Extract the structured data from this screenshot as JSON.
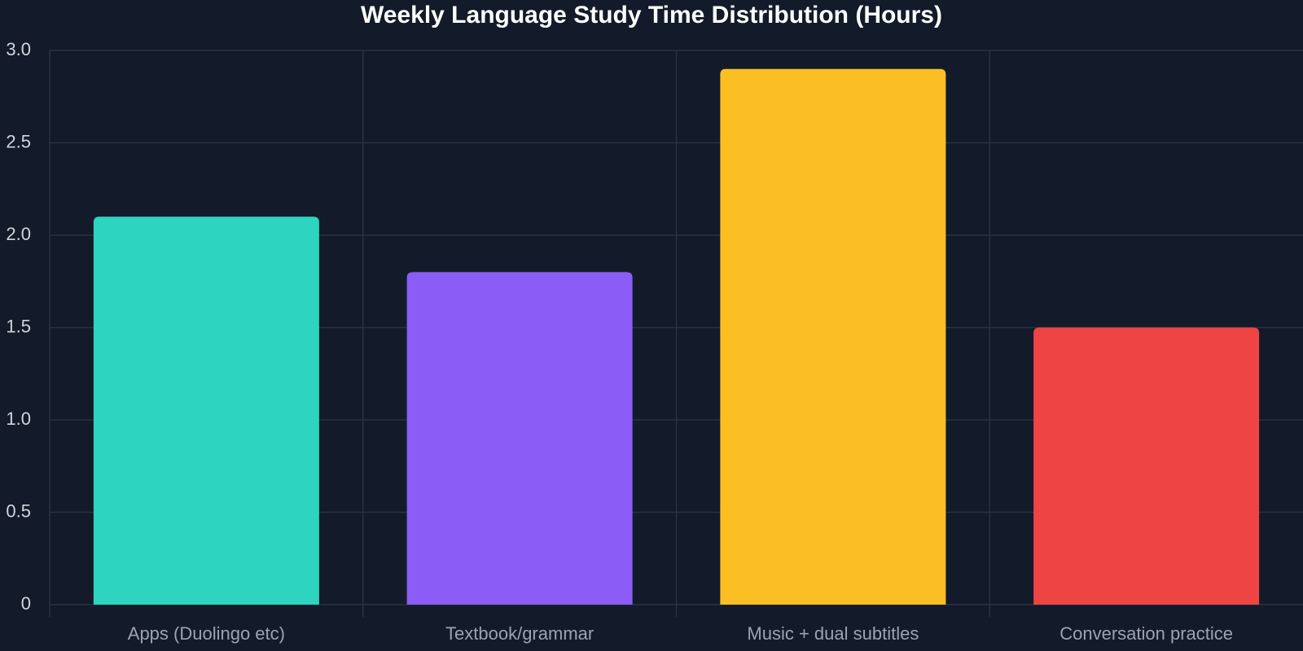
{
  "chart_data": {
    "type": "bar",
    "title": "Weekly Language Study Time Distribution (Hours)",
    "categories": [
      "Apps (Duolingo etc)",
      "Textbook/grammar",
      "Music + dual subtitles",
      "Conversation practice"
    ],
    "values": [
      2.1,
      1.8,
      2.9,
      1.5
    ],
    "colors": [
      "#2dd4bf",
      "#8b5cf6",
      "#fbbf24",
      "#ef4444"
    ],
    "ylim": [
      0,
      3
    ],
    "yticks": [
      0,
      0.5,
      {
        "value": 1,
        "label": "1.0"
      },
      1.5,
      {
        "value": 2,
        "label": "2.0"
      },
      2.5,
      {
        "value": 3,
        "label": "3.0"
      }
    ],
    "grid": true
  }
}
